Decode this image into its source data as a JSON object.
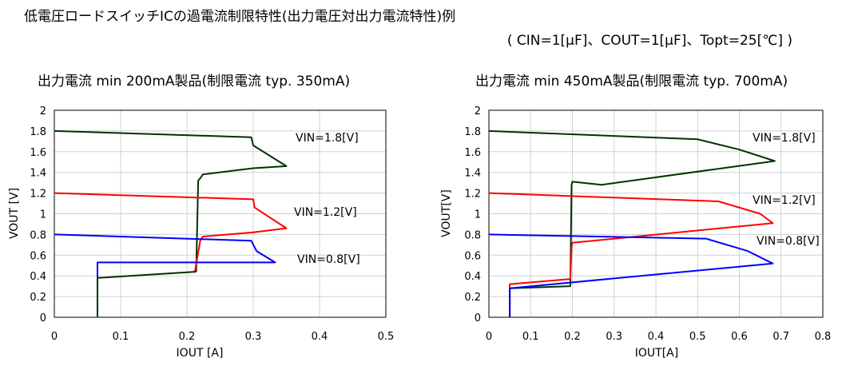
{
  "page": {
    "title": "低電圧ロードスイッチICの過電流制限特性(出力電圧対出力電流特性)例",
    "conditions": "( CIN=1[μF]、COUT=1[μF]、Topt=25[℃] )"
  },
  "chart_data": [
    {
      "type": "line",
      "title": "出力電流 min 200mA製品(制限電流 typ. 350mA)",
      "xlabel": "IOUT [A]",
      "ylabel": "VOUT [V]",
      "xlim": [
        0,
        0.5
      ],
      "ylim": [
        0,
        2
      ],
      "xticks": [
        "0",
        "0.1",
        "0.2",
        "0.3",
        "0.4",
        "0.5"
      ],
      "yticks": [
        "0",
        "0.2",
        "0.4",
        "0.6",
        "0.8",
        "1",
        "1.2",
        "1.4",
        "1.6",
        "1.8",
        "2"
      ],
      "grid": true,
      "series": [
        {
          "name": "VIN=1.8[V]",
          "color": "#003300",
          "x": [
            0,
            0.297,
            0.3,
            0.35,
            0.3,
            0.224,
            0.222,
            0.217,
            0.214
          ],
          "y": [
            1.8,
            1.74,
            1.66,
            1.46,
            1.44,
            1.38,
            1.36,
            1.32,
            0.44
          ]
        },
        {
          "name": "VIN=1.2[V]",
          "color": "#ff0000",
          "x": [
            0,
            0.3,
            0.302,
            0.35,
            0.3,
            0.224,
            0.22,
            0.212
          ],
          "y": [
            1.2,
            1.14,
            1.06,
            0.86,
            0.82,
            0.78,
            0.74,
            0.44
          ]
        },
        {
          "name": "VIN=0.8[V]",
          "color": "#0000ff",
          "x": [
            0,
            0.297,
            0.305,
            0.333,
            0.065,
            0.065
          ],
          "y": [
            0.8,
            0.74,
            0.64,
            0.53,
            0.53,
            0.0
          ]
        },
        {
          "name": "",
          "color": "#003300",
          "x": [
            0.214,
            0.065,
            0.065
          ],
          "y": [
            0.44,
            0.38,
            0.0
          ]
        }
      ]
    },
    {
      "type": "line",
      "title": "出力電流 min 450mA製品(制限電流 typ. 700mA)",
      "xlabel": "IOUT[A]",
      "ylabel": "VOUT[V]",
      "xlim": [
        0,
        0.8
      ],
      "ylim": [
        0,
        2
      ],
      "xticks": [
        "0",
        "0.1",
        "0.2",
        "0.3",
        "0.4",
        "0.5",
        "0.6",
        "0.7",
        "0.8"
      ],
      "yticks": [
        "0",
        "0.2",
        "0.4",
        "0.6",
        "0.8",
        "1",
        "1.2",
        "1.4",
        "1.6",
        "1.8",
        "2"
      ],
      "grid": true,
      "series": [
        {
          "name": "VIN=1.8[V]",
          "color": "#003300",
          "x": [
            0,
            0.5,
            0.6,
            0.685,
            0.27,
            0.2,
            0.198,
            0.195,
            0.05,
            0.05
          ],
          "y": [
            1.8,
            1.72,
            1.62,
            1.51,
            1.28,
            1.31,
            1.28,
            0.3,
            0.28,
            0.0
          ]
        },
        {
          "name": "VIN=1.2[V]",
          "color": "#ff0000",
          "x": [
            0,
            0.55,
            0.65,
            0.68,
            0.2,
            0.198,
            0.195,
            0.05,
            0.05
          ],
          "y": [
            1.2,
            1.12,
            1.0,
            0.91,
            0.72,
            0.68,
            0.37,
            0.32,
            0.0
          ]
        },
        {
          "name": "VIN=0.8[V]",
          "color": "#0000ff",
          "x": [
            0,
            0.52,
            0.62,
            0.68,
            0.05,
            0.05
          ],
          "y": [
            0.8,
            0.76,
            0.64,
            0.52,
            0.28,
            0.0
          ]
        }
      ]
    }
  ]
}
